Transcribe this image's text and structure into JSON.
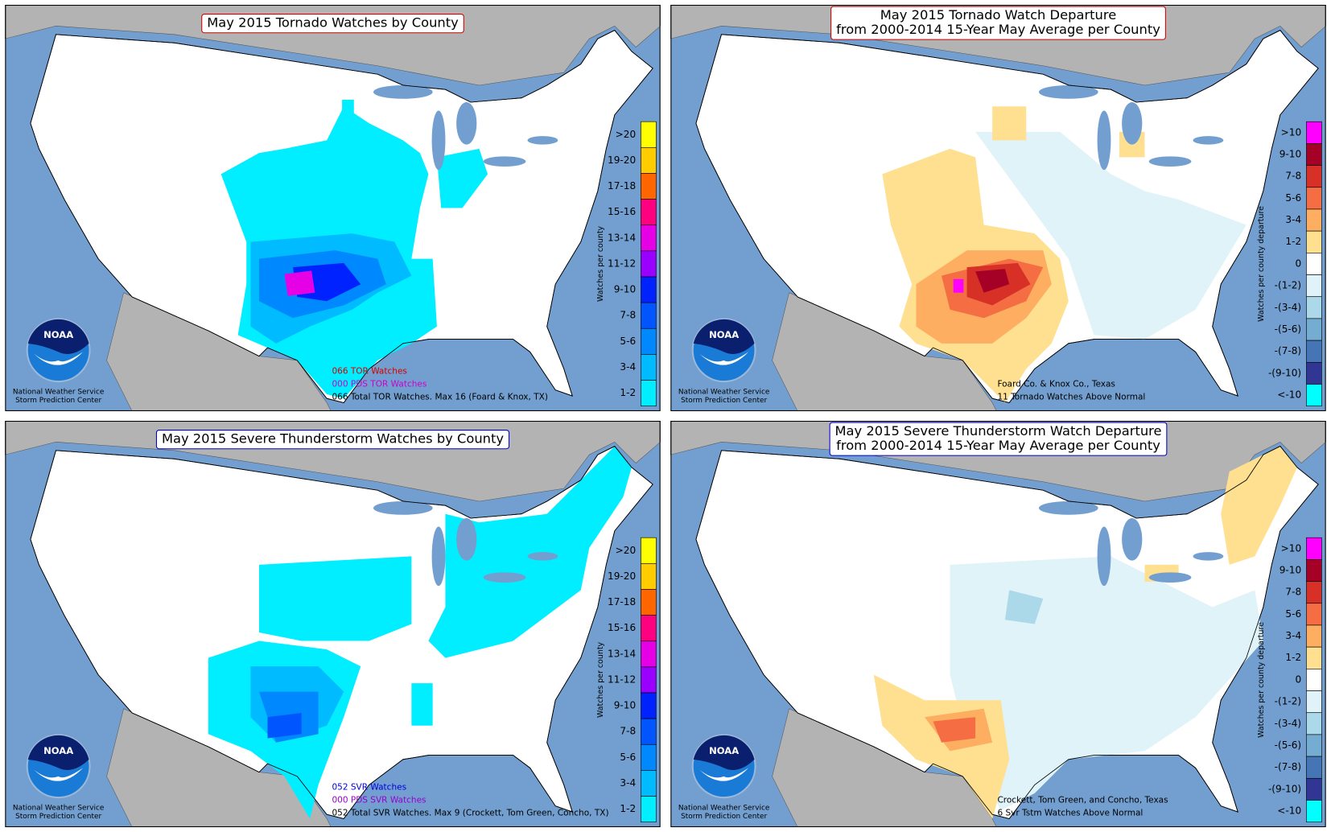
{
  "logo": "NOAA",
  "credit": [
    "National Weather Service",
    "Storm Prediction Center"
  ],
  "panels": [
    {
      "title": [
        "May 2015 Tornado Watches by County"
      ],
      "title_border": "#cc0000",
      "legend_label": "Watches per county",
      "legend": [
        {
          "label": ">20",
          "color": "#ffff00"
        },
        {
          "label": "19-20",
          "color": "#ffcc00"
        },
        {
          "label": "17-18",
          "color": "#ff6600"
        },
        {
          "label": "15-16",
          "color": "#ff0080"
        },
        {
          "label": "13-14",
          "color": "#e600e6"
        },
        {
          "label": "11-12",
          "color": "#9900ff"
        },
        {
          "label": "9-10",
          "color": "#0022ff"
        },
        {
          "label": "7-8",
          "color": "#0055ff"
        },
        {
          "label": "5-6",
          "color": "#0088ff"
        },
        {
          "label": "3-4",
          "color": "#00bbff"
        },
        {
          "label": "1-2",
          "color": "#00eeff"
        }
      ],
      "notes": [
        {
          "text": "066 TOR Watches",
          "color": "#d40000"
        },
        {
          "text": "000 PDS TOR Watches",
          "color": "#cc00cc"
        },
        {
          "text": "066 Total TOR Watches. Max 16 (Foard & Knox, TX)",
          "color": "#000000"
        }
      ]
    },
    {
      "title": [
        "May 2015 Tornado Watch Departure",
        "from 2000-2014 15-Year May Average per County"
      ],
      "title_border": "#cc0000",
      "legend_label": "Watches per county departure",
      "legend": [
        {
          "label": ">10",
          "color": "#ff00ff"
        },
        {
          "label": "9-10",
          "color": "#a50026"
        },
        {
          "label": "7-8",
          "color": "#d73027"
        },
        {
          "label": "5-6",
          "color": "#f46d43"
        },
        {
          "label": "3-4",
          "color": "#fdae61"
        },
        {
          "label": "1-2",
          "color": "#fee090"
        },
        {
          "label": "0",
          "color": "#ffffff"
        },
        {
          "label": "-(1-2)",
          "color": "#e0f3f8"
        },
        {
          "label": "-(3-4)",
          "color": "#abd9e9"
        },
        {
          "label": "-(5-6)",
          "color": "#74add1"
        },
        {
          "label": "-(7-8)",
          "color": "#4575b4"
        },
        {
          "label": "-(9-10)",
          "color": "#313695"
        },
        {
          "label": "<-10",
          "color": "#00ffff"
        }
      ],
      "notes": [
        {
          "text": "Foard Co. & Knox Co., Texas",
          "color": "#000000"
        },
        {
          "text": "11 Tornado Watches Above Normal",
          "color": "#000000"
        }
      ]
    },
    {
      "title": [
        "May 2015 Severe Thunderstorm Watches by County"
      ],
      "title_border": "#0000cc",
      "legend_label": "Watches per county",
      "legend": [
        {
          "label": ">20",
          "color": "#ffff00"
        },
        {
          "label": "19-20",
          "color": "#ffcc00"
        },
        {
          "label": "17-18",
          "color": "#ff6600"
        },
        {
          "label": "15-16",
          "color": "#ff0080"
        },
        {
          "label": "13-14",
          "color": "#e600e6"
        },
        {
          "label": "11-12",
          "color": "#9900ff"
        },
        {
          "label": "9-10",
          "color": "#0022ff"
        },
        {
          "label": "7-8",
          "color": "#0055ff"
        },
        {
          "label": "5-6",
          "color": "#0088ff"
        },
        {
          "label": "3-4",
          "color": "#00bbff"
        },
        {
          "label": "1-2",
          "color": "#00eeff"
        }
      ],
      "notes": [
        {
          "text": "052 SVR Watches",
          "color": "#0000dd"
        },
        {
          "text": "000 PDS SVR Watches",
          "color": "#9900cc"
        },
        {
          "text": "052 Total SVR Watches. Max 9 (Crockett, Tom Green, Concho, TX)",
          "color": "#000000"
        }
      ]
    },
    {
      "title": [
        "May 2015 Severe Thunderstorm Watch Departure",
        "from 2000-2014 15-Year May Average per County"
      ],
      "title_border": "#0000cc",
      "legend_label": "Watches per county departure",
      "legend": [
        {
          "label": ">10",
          "color": "#ff00ff"
        },
        {
          "label": "9-10",
          "color": "#a50026"
        },
        {
          "label": "7-8",
          "color": "#d73027"
        },
        {
          "label": "5-6",
          "color": "#f46d43"
        },
        {
          "label": "3-4",
          "color": "#fdae61"
        },
        {
          "label": "1-2",
          "color": "#fee090"
        },
        {
          "label": "0",
          "color": "#ffffff"
        },
        {
          "label": "-(1-2)",
          "color": "#e0f3f8"
        },
        {
          "label": "-(3-4)",
          "color": "#abd9e9"
        },
        {
          "label": "-(5-6)",
          "color": "#74add1"
        },
        {
          "label": "-(7-8)",
          "color": "#4575b4"
        },
        {
          "label": "-(9-10)",
          "color": "#313695"
        },
        {
          "label": "<-10",
          "color": "#00ffff"
        }
      ],
      "notes": [
        {
          "text": "Crockett, Tom Green, and Concho, Texas",
          "color": "#000000"
        },
        {
          "text": "6 Svr Tstm Watches Above Normal",
          "color": "#000000"
        }
      ]
    }
  ]
}
